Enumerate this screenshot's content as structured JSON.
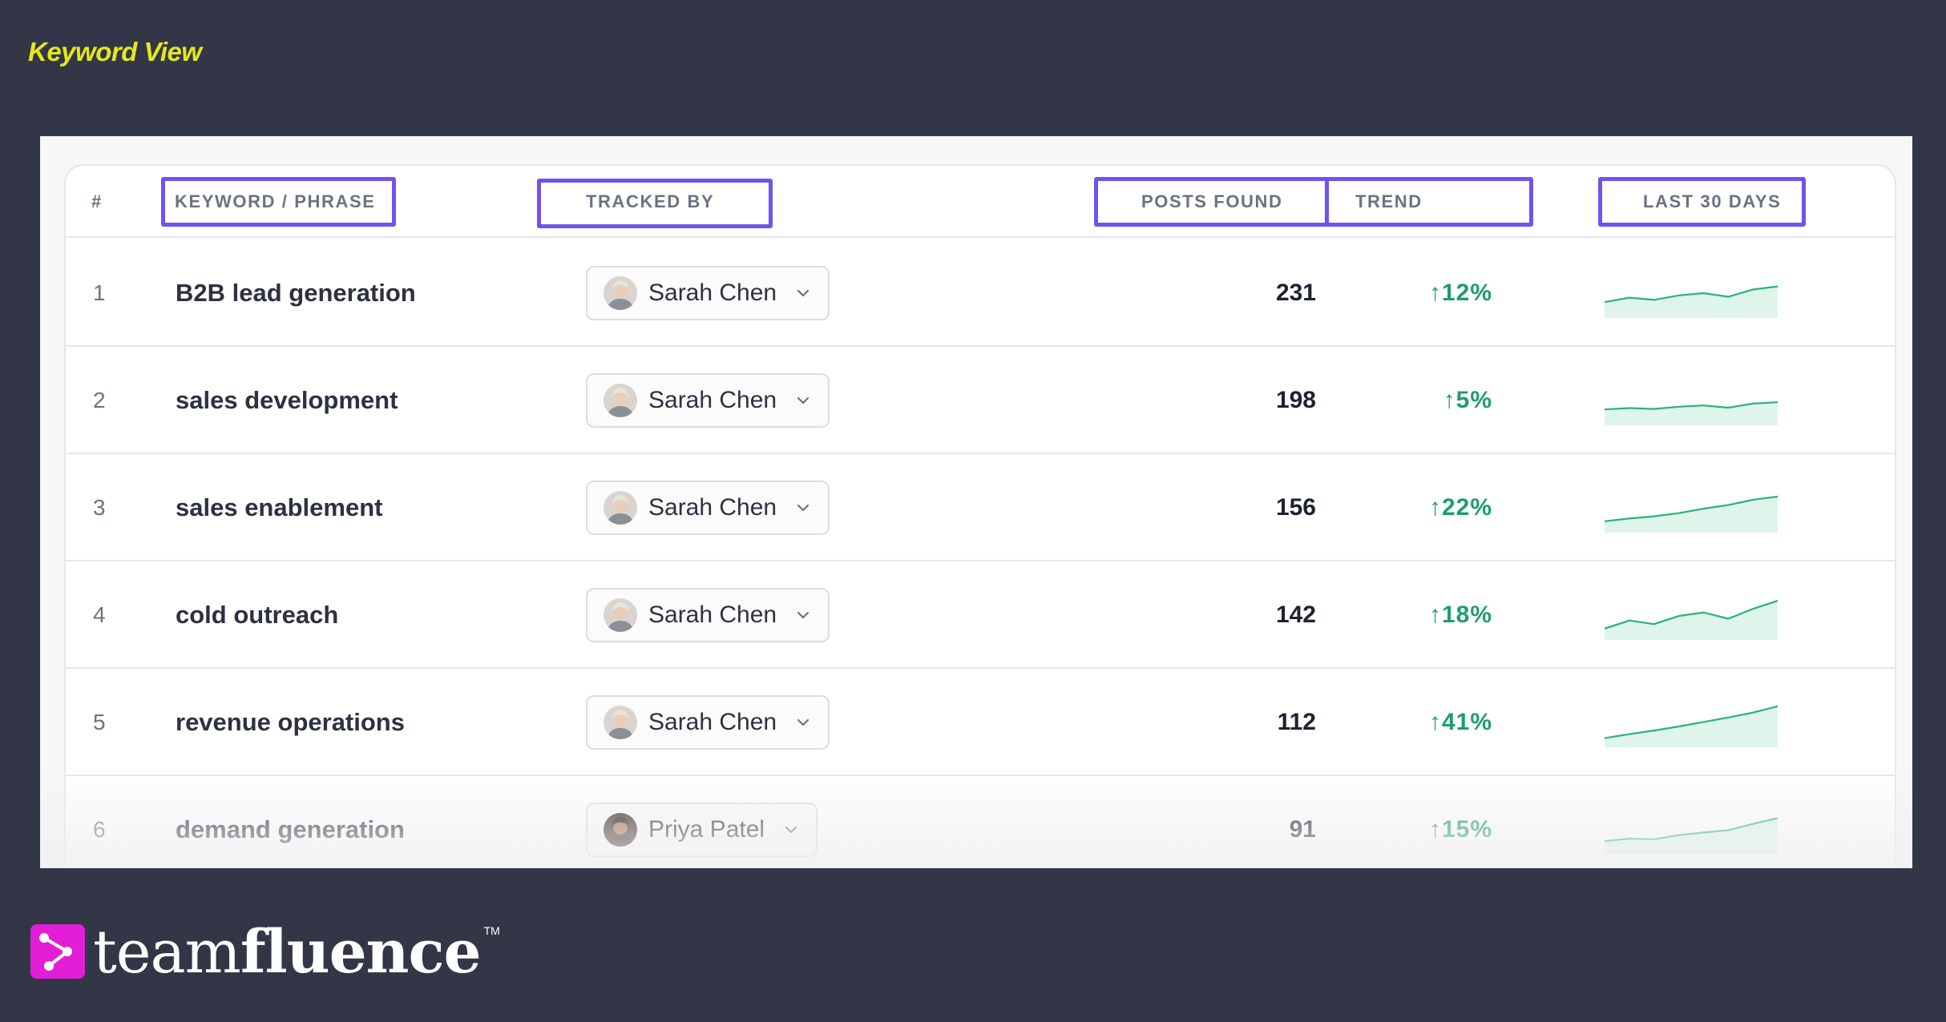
{
  "page": {
    "title": "Keyword View"
  },
  "table": {
    "headers": {
      "index": "#",
      "keyword": "KEYWORD / PHRASE",
      "tracked_by": "TRACKED BY",
      "posts_found": "POSTS FOUND",
      "trend": "TREND",
      "last_30_days": "LAST 30 DAYS"
    },
    "rows": [
      {
        "index": "1",
        "keyword": "B2B lead generation",
        "tracked_by": "Sarah Chen",
        "posts": "231",
        "trend": "↑12%",
        "spark": [
          3,
          4,
          3.5,
          4.5,
          5,
          4.2,
          5.8,
          6.5
        ]
      },
      {
        "index": "2",
        "keyword": "sales development",
        "tracked_by": "Sarah Chen",
        "posts": "198",
        "trend": "↑5%",
        "spark": [
          3,
          3.3,
          3.1,
          3.6,
          3.9,
          3.4,
          4.3,
          4.6
        ]
      },
      {
        "index": "3",
        "keyword": "sales enablement",
        "tracked_by": "Sarah Chen",
        "posts": "156",
        "trend": "↑22%",
        "spark": [
          2,
          2.6,
          3.1,
          3.8,
          4.8,
          5.6,
          6.8,
          7.5
        ]
      },
      {
        "index": "4",
        "keyword": "cold outreach",
        "tracked_by": "Sarah Chen",
        "posts": "142",
        "trend": "↑18%",
        "spark": [
          2,
          3.8,
          3,
          4.8,
          5.6,
          4.2,
          6.4,
          8.2
        ]
      },
      {
        "index": "5",
        "keyword": "revenue operations",
        "tracked_by": "Sarah Chen",
        "posts": "112",
        "trend": "↑41%",
        "spark": [
          1.5,
          2.4,
          3.2,
          4.1,
          5.1,
          6.1,
          7.2,
          8.6
        ]
      },
      {
        "index": "6",
        "keyword": "demand generation",
        "tracked_by": "Priya Patel",
        "posts": "91",
        "trend": "↑15%",
        "spark": [
          2.5,
          3,
          2.9,
          3.8,
          4.4,
          4.9,
          6.3,
          7.6
        ]
      }
    ]
  },
  "colors": {
    "highlight": "#7252ef",
    "trend_up": "#1f9d6b",
    "spark_line": "#29b37a",
    "spark_fill": "#dff4ea",
    "title_accent": "#e4e81a",
    "brand": "#e21fd6"
  },
  "brand": {
    "light": "team",
    "bold": "fluence",
    "tm": "TM"
  }
}
